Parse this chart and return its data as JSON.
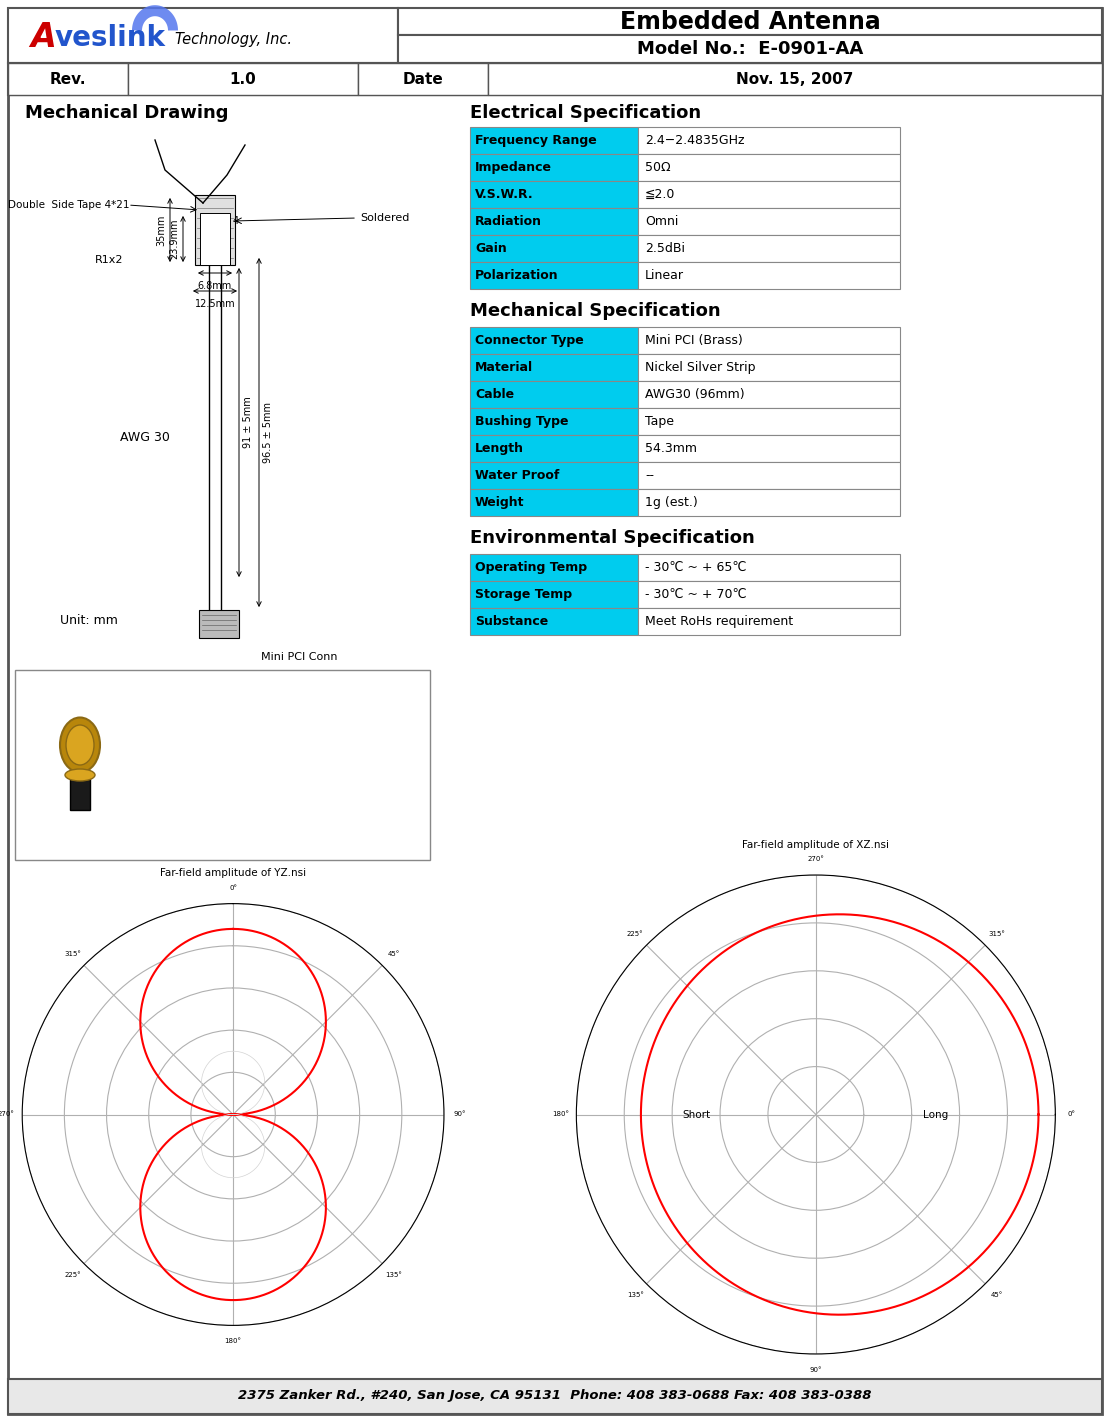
{
  "title_main": "Embedded Antenna",
  "model_no": "Model No.:  E-0901-AA",
  "rev_label": "Rev.",
  "rev_value": "1.0",
  "date_label": "Date",
  "date_value": "Nov. 15, 2007",
  "section_mechanical_drawing": "Mechanical Drawing",
  "section_electrical": "Electrical Specification",
  "section_mechanical_spec": "Mechanical Specification",
  "section_environmental": "Environmental Specification",
  "electrical_rows": [
    [
      "Frequency Range",
      "2.4−2.4835GHz"
    ],
    [
      "Impedance",
      "50Ω"
    ],
    [
      "V.S.W.R.",
      "≦2.0"
    ],
    [
      "Radiation",
      "Omni"
    ],
    [
      "Gain",
      "2.5dBi"
    ],
    [
      "Polarization",
      "Linear"
    ]
  ],
  "mechanical_rows": [
    [
      "Connector Type",
      "Mini PCI (Brass)"
    ],
    [
      "Material",
      "Nickel Silver Strip"
    ],
    [
      "Cable",
      "AWG30 (96mm)"
    ],
    [
      "Bushing Type",
      "Tape"
    ],
    [
      "Length",
      "54.3mm"
    ],
    [
      "Water Proof",
      "--"
    ],
    [
      "Weight",
      "1g (est.)"
    ]
  ],
  "environmental_rows": [
    [
      "Operating Temp",
      "- 30℃ ~ + 65℃"
    ],
    [
      "Storage Temp",
      "- 30℃ ~ + 70℃"
    ],
    [
      "Substance",
      "Meet RoHs requirement"
    ]
  ],
  "footer_text": "2375 Zanker Rd., #240, San Jose, CA 95131  Phone: 408 383-0688 Fax: 408 383-0388",
  "cyan_color": "#00CCEE",
  "unit_text": "Unit: mm",
  "mini_pci_label": "Mini PCI Conn",
  "awg_label": "AWG 30",
  "soldered_label": "Soldered",
  "double_side_tape": "Double  Side Tape 4*21",
  "r1x2_label": "R1x2",
  "yz_title": "Far-field amplitude of YZ.nsi",
  "xz_title": "Far-field amplitude of XZ.nsi",
  "short_label": "Short",
  "long_label": "Long"
}
